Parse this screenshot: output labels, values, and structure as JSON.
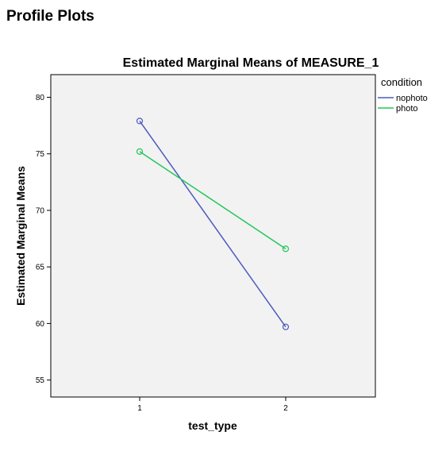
{
  "page": {
    "heading": "Profile Plots"
  },
  "chart_data": {
    "type": "line",
    "title": "Estimated Marginal Means of MEASURE_1",
    "xlabel": "test_type",
    "ylabel": "Estimated Marginal Means",
    "categories": [
      "1",
      "2"
    ],
    "ylim": [
      53.5,
      82
    ],
    "yticks": [
      55,
      60,
      65,
      70,
      75,
      80
    ],
    "legend": {
      "title": "condition",
      "placement": "right"
    },
    "series": [
      {
        "name": "nophoto",
        "values": [
          77.9,
          59.7
        ],
        "color": "#4b5bbd"
      },
      {
        "name": "photo",
        "values": [
          75.2,
          66.6
        ],
        "color": "#21c75a"
      }
    ],
    "grid": false,
    "plot_background": "#f2f2f2"
  }
}
